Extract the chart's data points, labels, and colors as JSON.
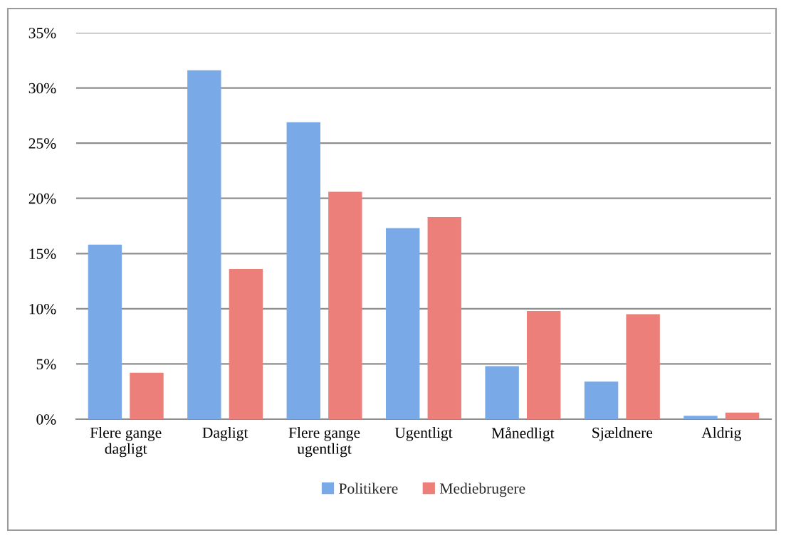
{
  "chart_data": {
    "type": "bar",
    "categories": [
      "Flere gange dagligt",
      "Dagligt",
      "Flere gange ugentligt",
      "Ugentligt",
      "Månedligt",
      "Sjældnere",
      "Aldrig"
    ],
    "series": [
      {
        "name": "Politikere",
        "color": "#79a9e6",
        "values": [
          15.8,
          31.6,
          26.9,
          17.3,
          4.8,
          3.4,
          0.3
        ]
      },
      {
        "name": "Mediebrugere",
        "color": "#ec7f79",
        "values": [
          4.2,
          13.6,
          20.6,
          18.3,
          9.8,
          9.5,
          0.6
        ]
      }
    ],
    "ylim": [
      0,
      35
    ],
    "yticks": [
      {
        "value": 0,
        "label": "0%"
      },
      {
        "value": 5,
        "label": "5%"
      },
      {
        "value": 10,
        "label": "10%"
      },
      {
        "value": 15,
        "label": "15%"
      },
      {
        "value": 20,
        "label": "20%"
      },
      {
        "value": 25,
        "label": "25%"
      },
      {
        "value": 30,
        "label": "30%"
      },
      {
        "value": 35,
        "label": "35%"
      }
    ],
    "grid": "y",
    "legend": "bottom"
  }
}
